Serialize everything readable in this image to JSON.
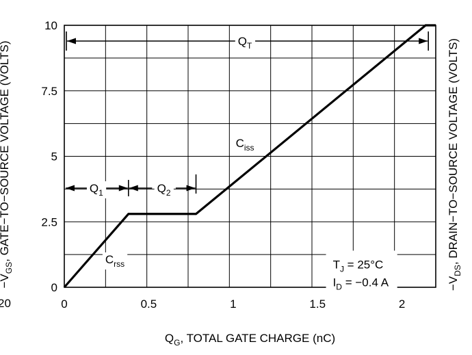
{
  "chart_data": {
    "type": "line",
    "xlabel": {
      "main": "Q",
      "sub": "G",
      "rest": ", TOTAL GATE CHARGE (nC)"
    },
    "ylabel_left": {
      "pre": "−V",
      "sub": "GS",
      "rest": ", GATE−TO−SOURCE VOLTAGE (VOLTS)"
    },
    "ylabel_right": {
      "pre": "−V",
      "sub": "DS",
      "rest": ", DRAIN−TO−SOURCE VOLTAGE (VOLTS)"
    },
    "left_partial_label": "20",
    "xlim": [
      0,
      2.2
    ],
    "ylim": [
      0,
      10
    ],
    "x_ticks": [
      0,
      0.5,
      1,
      1.5,
      2
    ],
    "x_tick_labels": [
      "0",
      "0.5",
      "1",
      "1.5",
      "2"
    ],
    "y_ticks": [
      0,
      2.5,
      5,
      7.5,
      10
    ],
    "y_tick_labels": [
      "0",
      "2.5",
      "5",
      "7.5",
      "10"
    ],
    "grid": true,
    "series": [
      {
        "x": [
          0,
          0.38,
          0.78,
          2.14,
          2.2
        ],
        "y": [
          0,
          2.8,
          2.8,
          10,
          10
        ]
      }
    ],
    "annotations": {
      "qt": {
        "main": "Q",
        "sub": "T"
      },
      "q1": {
        "main": "Q",
        "sub": "1"
      },
      "q2": {
        "main": "Q",
        "sub": "2"
      },
      "ciss": {
        "main": "C",
        "sub": "iss"
      },
      "crss": {
        "main": "C",
        "sub": "rss"
      },
      "tj": {
        "main": "T",
        "sub": "J",
        "rest": " = 25°C"
      },
      "id": {
        "main": "I",
        "sub": "D",
        "rest": " = −0.4 A"
      }
    }
  }
}
